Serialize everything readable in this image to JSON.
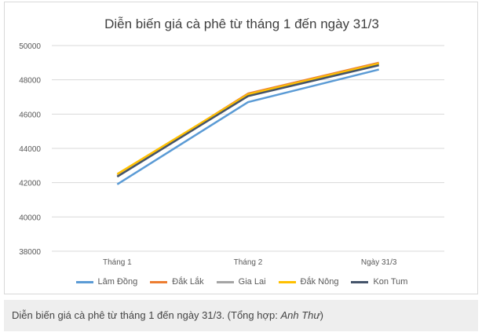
{
  "chart_data": {
    "type": "line",
    "title": "Diễn biến giá cà phê từ tháng 1 đến ngày 31/3",
    "categories": [
      "Tháng 1",
      "Tháng 2",
      "Ngày 31/3"
    ],
    "ylim": [
      38000,
      50000
    ],
    "yticks": [
      "38000",
      "40000",
      "42000",
      "44000",
      "46000",
      "48000",
      "50000"
    ],
    "grid": true,
    "legend_position": "bottom",
    "series": [
      {
        "name": "Lâm Đồng",
        "color": "#5b9bd5",
        "values": [
          41900,
          46700,
          48600
        ]
      },
      {
        "name": "Đắk Lắk",
        "color": "#ed7d31",
        "values": [
          42400,
          47200,
          49000
        ]
      },
      {
        "name": "Gia Lai",
        "color": "#a5a5a5",
        "values": [
          42400,
          47150,
          48950
        ]
      },
      {
        "name": "Đắk Nông",
        "color": "#ffc000",
        "values": [
          42500,
          47150,
          48950
        ]
      },
      {
        "name": "Kon Tum",
        "color": "#44546a",
        "values": [
          42350,
          47050,
          48850
        ]
      }
    ]
  },
  "caption": {
    "text": "Diễn biến giá cà phê từ tháng 1 đến ngày 31/3. (Tổng hợp: ",
    "author": "Anh Thư",
    "close": ")"
  }
}
